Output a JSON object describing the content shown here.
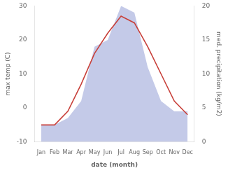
{
  "chart_data": {
    "type": "line",
    "xlabel": "date (month)",
    "ylabel": "max temp (C)",
    "y2label": "med. precipitation (kg/m2)",
    "categories": [
      "Jan",
      "Feb",
      "Mar",
      "Apr",
      "May",
      "Jun",
      "Jul",
      "Aug",
      "Sep",
      "Oct",
      "Nov",
      "Dec"
    ],
    "series": [
      {
        "type": "area",
        "color": "#b0b8e0",
        "axis": "y2",
        "values": [
          2.5,
          2.5,
          3.5,
          6,
          14,
          15,
          20,
          19,
          11,
          6,
          4.5,
          4.5
        ]
      },
      {
        "type": "line",
        "color": "#c8403a",
        "axis": "y",
        "values": [
          -5,
          -5,
          -1,
          7,
          16,
          22,
          27,
          25,
          18,
          10,
          2,
          -2
        ]
      }
    ],
    "ylim": [
      -10,
      30
    ],
    "yticks": [
      -10,
      0,
      10,
      20,
      30
    ],
    "y2lim": [
      0,
      20
    ],
    "y2ticks": [
      0,
      5,
      10,
      15,
      20
    ],
    "grid": false
  }
}
